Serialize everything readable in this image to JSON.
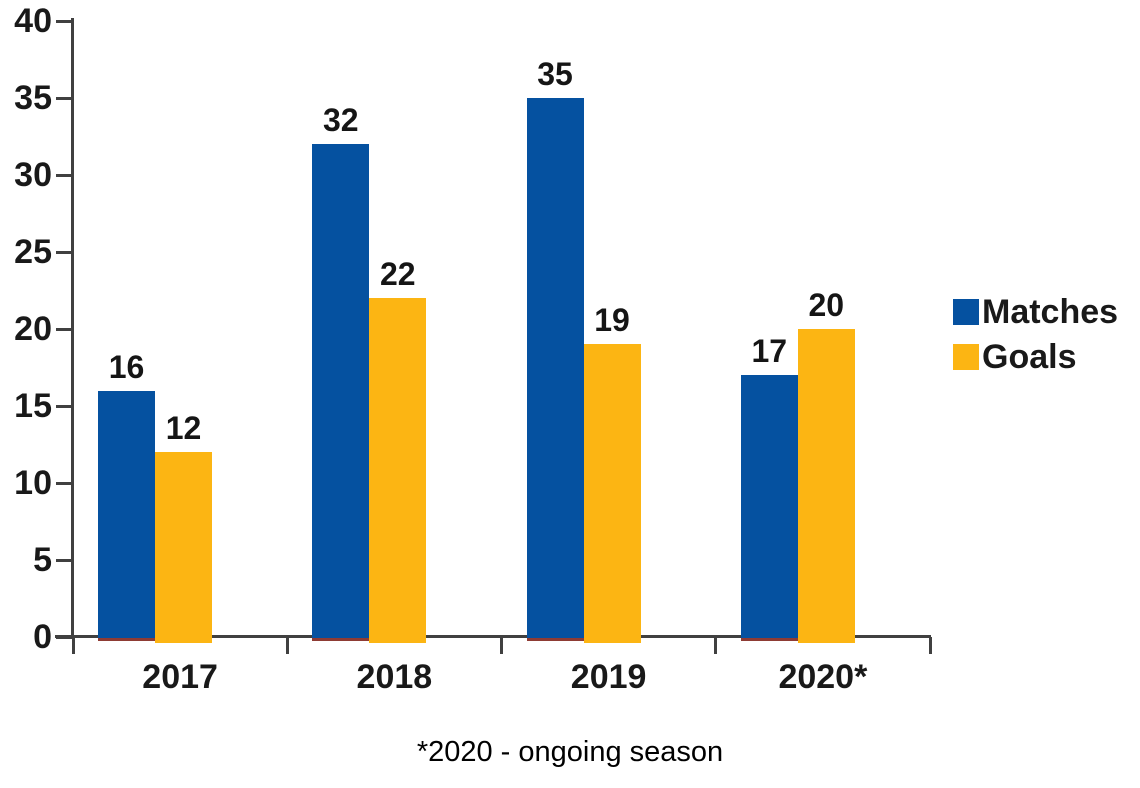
{
  "chart_data": {
    "type": "bar",
    "categories": [
      "2017",
      "2018",
      "2019",
      "2020*"
    ],
    "series": [
      {
        "name": "Matches",
        "color": "#0551A0",
        "values": [
          16,
          32,
          35,
          17
        ]
      },
      {
        "name": "Goals",
        "color": "#FCB513",
        "values": [
          12,
          22,
          19,
          20
        ]
      }
    ],
    "title": "",
    "xlabel": "",
    "ylabel": "",
    "ylim": [
      0,
      40
    ],
    "yticks": [
      0,
      5,
      10,
      15,
      20,
      25,
      30,
      35,
      40
    ],
    "grid": false,
    "legend_position": "right",
    "data_labels": true,
    "footnote": "*2020 - ongoing season"
  },
  "colors": {
    "matches_bar": "#0551A0",
    "goals_bar": "#FCB513",
    "axis": "#404040",
    "text": "#191919",
    "baseline_accent": "#8E3B34",
    "background": "#FFFFFF"
  }
}
